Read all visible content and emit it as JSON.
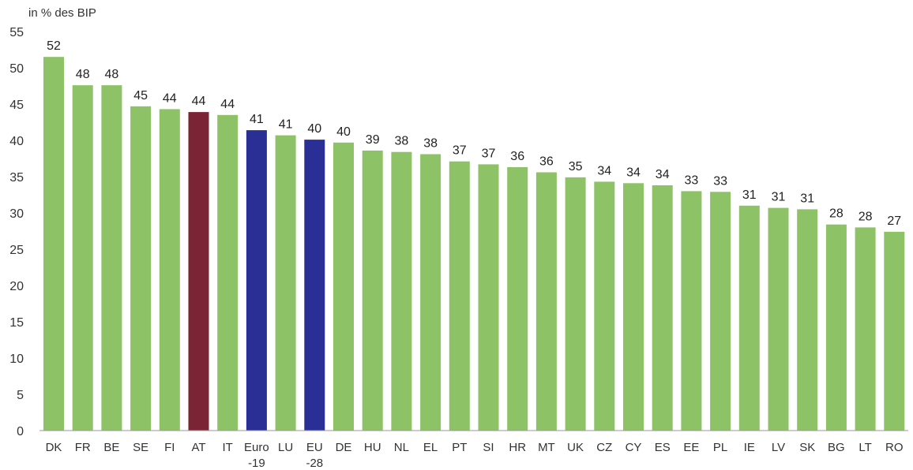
{
  "chart_data": {
    "type": "bar",
    "ylabel": "in % des BIP",
    "ylim": [
      0,
      55
    ],
    "yticks": [
      0,
      5,
      10,
      15,
      20,
      25,
      30,
      35,
      40,
      45,
      50,
      55
    ],
    "grid": false,
    "categories": [
      [
        "DK"
      ],
      [
        "FR"
      ],
      [
        "BE"
      ],
      [
        "SE"
      ],
      [
        "FI"
      ],
      [
        "AT"
      ],
      [
        "IT"
      ],
      [
        "Euro",
        "-19"
      ],
      [
        "LU"
      ],
      [
        "EU",
        "-28"
      ],
      [
        "DE"
      ],
      [
        "HU"
      ],
      [
        "NL"
      ],
      [
        "EL"
      ],
      [
        "PT"
      ],
      [
        "SI"
      ],
      [
        "HR"
      ],
      [
        "MT"
      ],
      [
        "UK"
      ],
      [
        "CZ"
      ],
      [
        "CY"
      ],
      [
        "ES"
      ],
      [
        "EE"
      ],
      [
        "PL"
      ],
      [
        "IE"
      ],
      [
        "LV"
      ],
      [
        "SK"
      ],
      [
        "BG"
      ],
      [
        "LT"
      ],
      [
        "RO"
      ]
    ],
    "values": [
      51.5,
      47.6,
      47.6,
      44.7,
      44.3,
      43.9,
      43.5,
      41.4,
      40.7,
      40.1,
      39.7,
      38.6,
      38.4,
      38.1,
      37.1,
      36.7,
      36.3,
      35.6,
      34.9,
      34.3,
      34.1,
      33.8,
      33.0,
      32.9,
      31.0,
      30.7,
      30.5,
      28.4,
      28.0,
      27.4
    ],
    "labels": [
      "52",
      "48",
      "48",
      "45",
      "44",
      "44",
      "44",
      "41",
      "41",
      "40",
      "40",
      "39",
      "38",
      "38",
      "37",
      "37",
      "36",
      "36",
      "35",
      "34",
      "34",
      "34",
      "33",
      "33",
      "31",
      "31",
      "31",
      "28",
      "28",
      "27"
    ],
    "bar_colors": [
      "#8ec267",
      "#8ec267",
      "#8ec267",
      "#8ec267",
      "#8ec267",
      "#7a2435",
      "#8ec267",
      "#2a2f96",
      "#8ec267",
      "#2a2f96",
      "#8ec267",
      "#8ec267",
      "#8ec267",
      "#8ec267",
      "#8ec267",
      "#8ec267",
      "#8ec267",
      "#8ec267",
      "#8ec267",
      "#8ec267",
      "#8ec267",
      "#8ec267",
      "#8ec267",
      "#8ec267",
      "#8ec267",
      "#8ec267",
      "#8ec267",
      "#8ec267",
      "#8ec267",
      "#8ec267"
    ]
  }
}
